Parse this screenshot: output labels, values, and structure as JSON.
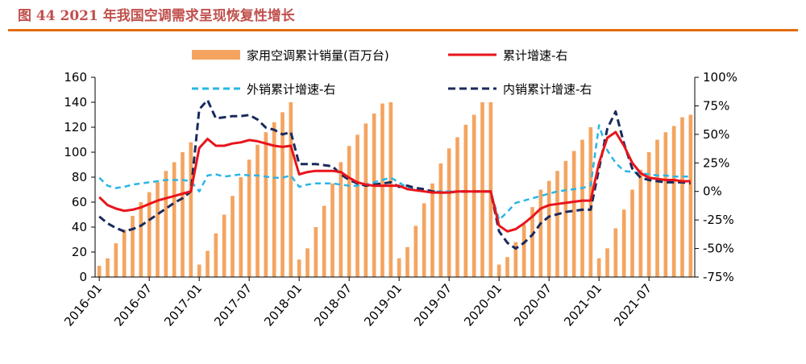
{
  "figure": {
    "title": "图 44 2021 年我国空调需求呈现恢复性增长"
  },
  "colors": {
    "bar": "#f4a460",
    "total_growth": "#e8141b",
    "export_growth": "#2ab6e6",
    "domestic_growth": "#1a2a5c",
    "title": "#c0504d",
    "rule": "#e36c09"
  },
  "chart_data": {
    "type": "bar",
    "x": [
      "2016-01",
      "2016-02",
      "2016-03",
      "2016-04",
      "2016-05",
      "2016-06",
      "2016-07",
      "2016-08",
      "2016-09",
      "2016-10",
      "2016-11",
      "2016-12",
      "2017-01",
      "2017-02",
      "2017-03",
      "2017-04",
      "2017-05",
      "2017-06",
      "2017-07",
      "2017-08",
      "2017-09",
      "2017-10",
      "2017-11",
      "2017-12",
      "2018-01",
      "2018-02",
      "2018-03",
      "2018-04",
      "2018-05",
      "2018-06",
      "2018-07",
      "2018-08",
      "2018-09",
      "2018-10",
      "2018-11",
      "2018-12",
      "2019-01",
      "2019-02",
      "2019-03",
      "2019-04",
      "2019-05",
      "2019-06",
      "2019-07",
      "2019-08",
      "2019-09",
      "2019-10",
      "2019-11",
      "2019-12",
      "2020-01",
      "2020-02",
      "2020-03",
      "2020-04",
      "2020-05",
      "2020-06",
      "2020-07",
      "2020-08",
      "2020-09",
      "2020-10",
      "2020-11",
      "2020-12",
      "2021-01",
      "2021-02",
      "2021-03",
      "2021-04",
      "2021-05",
      "2021-06",
      "2021-07",
      "2021-08",
      "2021-09",
      "2021-10",
      "2021-11",
      "2021-12"
    ],
    "x_tick_labels": [
      "2016-01",
      "2016-07",
      "2017-01",
      "2017-07",
      "2018-01",
      "2018-07",
      "2019-01",
      "2019-07",
      "2020-01",
      "2020-07",
      "2021-01",
      "2021-07"
    ],
    "series": [
      {
        "name": "家用空调累计销量(百万台)",
        "type": "bar",
        "axis": "left",
        "values": [
          9,
          15,
          27,
          38,
          49,
          60,
          68,
          76,
          85,
          92,
          100,
          108,
          10,
          21,
          35,
          50,
          65,
          80,
          94,
          106,
          116,
          124,
          132,
          140,
          14,
          23,
          40,
          57,
          75,
          92,
          105,
          114,
          123,
          131,
          139,
          140,
          15,
          24,
          41,
          59,
          75,
          91,
          103,
          112,
          122,
          130,
          140,
          140,
          10,
          16,
          28,
          42,
          56,
          70,
          77,
          85,
          93,
          101,
          110,
          120,
          15,
          23,
          39,
          54,
          70,
          86,
          100,
          110,
          116,
          121,
          128,
          130
        ]
      },
      {
        "name": "累计增速-右",
        "type": "line",
        "axis": "right",
        "values": [
          -5,
          -12,
          -15,
          -17,
          -16,
          -14,
          -11,
          -8,
          -6,
          -4,
          -2,
          0,
          38,
          46,
          40,
          40,
          42,
          43,
          45,
          44,
          42,
          40,
          39,
          40,
          15,
          17,
          18,
          18,
          18,
          17,
          12,
          8,
          6,
          5,
          5,
          5,
          5,
          2,
          1,
          0,
          -1,
          -1,
          -1,
          0,
          0,
          0,
          0,
          0,
          -30,
          -35,
          -33,
          -28,
          -22,
          -15,
          -12,
          -11,
          -10,
          -9,
          -8,
          -8,
          25,
          47,
          52,
          40,
          25,
          16,
          12,
          11,
          10,
          10,
          9,
          9
        ]
      },
      {
        "name": "外销累计增速-右",
        "type": "line",
        "axis": "right",
        "values": [
          12,
          5,
          3,
          4,
          6,
          7,
          8,
          9,
          10,
          10,
          10,
          9,
          0,
          14,
          15,
          13,
          14,
          15,
          14,
          14,
          13,
          12,
          12,
          14,
          4,
          6,
          7,
          7,
          7,
          6,
          5,
          5,
          6,
          8,
          10,
          12,
          8,
          3,
          2,
          1,
          0,
          0,
          0,
          0,
          0,
          0,
          0,
          0,
          -25,
          -18,
          -10,
          -8,
          -6,
          -4,
          -2,
          0,
          1,
          2,
          3,
          5,
          58,
          36,
          25,
          18,
          17,
          16,
          15,
          14,
          14,
          13,
          13,
          13
        ]
      },
      {
        "name": "内销累计增速-右",
        "type": "line",
        "axis": "right",
        "values": [
          -22,
          -28,
          -32,
          -35,
          -33,
          -30,
          -25,
          -20,
          -15,
          -10,
          -6,
          0,
          72,
          80,
          64,
          65,
          66,
          66,
          67,
          63,
          56,
          54,
          50,
          52,
          24,
          24,
          24,
          23,
          22,
          15,
          10,
          7,
          5,
          6,
          7,
          8,
          4,
          5,
          3,
          2,
          0,
          -1,
          -1,
          0,
          0,
          0,
          0,
          0,
          -35,
          -45,
          -50,
          -45,
          -38,
          -28,
          -22,
          -20,
          -18,
          -17,
          -16,
          -16,
          20,
          55,
          70,
          42,
          20,
          12,
          10,
          9,
          8,
          8,
          8,
          7
        ]
      }
    ],
    "y_left": {
      "min": 0,
      "max": 160,
      "ticks": [
        0,
        20,
        40,
        60,
        80,
        100,
        120,
        140,
        160
      ]
    },
    "y_right": {
      "min": -75,
      "max": 100,
      "ticks": [
        "100%",
        "75%",
        "50%",
        "25%",
        "0%",
        "-25%",
        "-50%",
        "-75%"
      ],
      "tick_values": [
        100,
        75,
        50,
        25,
        0,
        -25,
        -50,
        -75
      ]
    },
    "legend": [
      {
        "label": "家用空调累计销量(百万台)",
        "kind": "bar"
      },
      {
        "label": "累计增速-右",
        "kind": "solid"
      },
      {
        "label": "外销累计增速-右",
        "kind": "dash-light"
      },
      {
        "label": "内销累计增速-右",
        "kind": "dash-dark"
      }
    ],
    "legend_position": "top",
    "grid": false
  }
}
